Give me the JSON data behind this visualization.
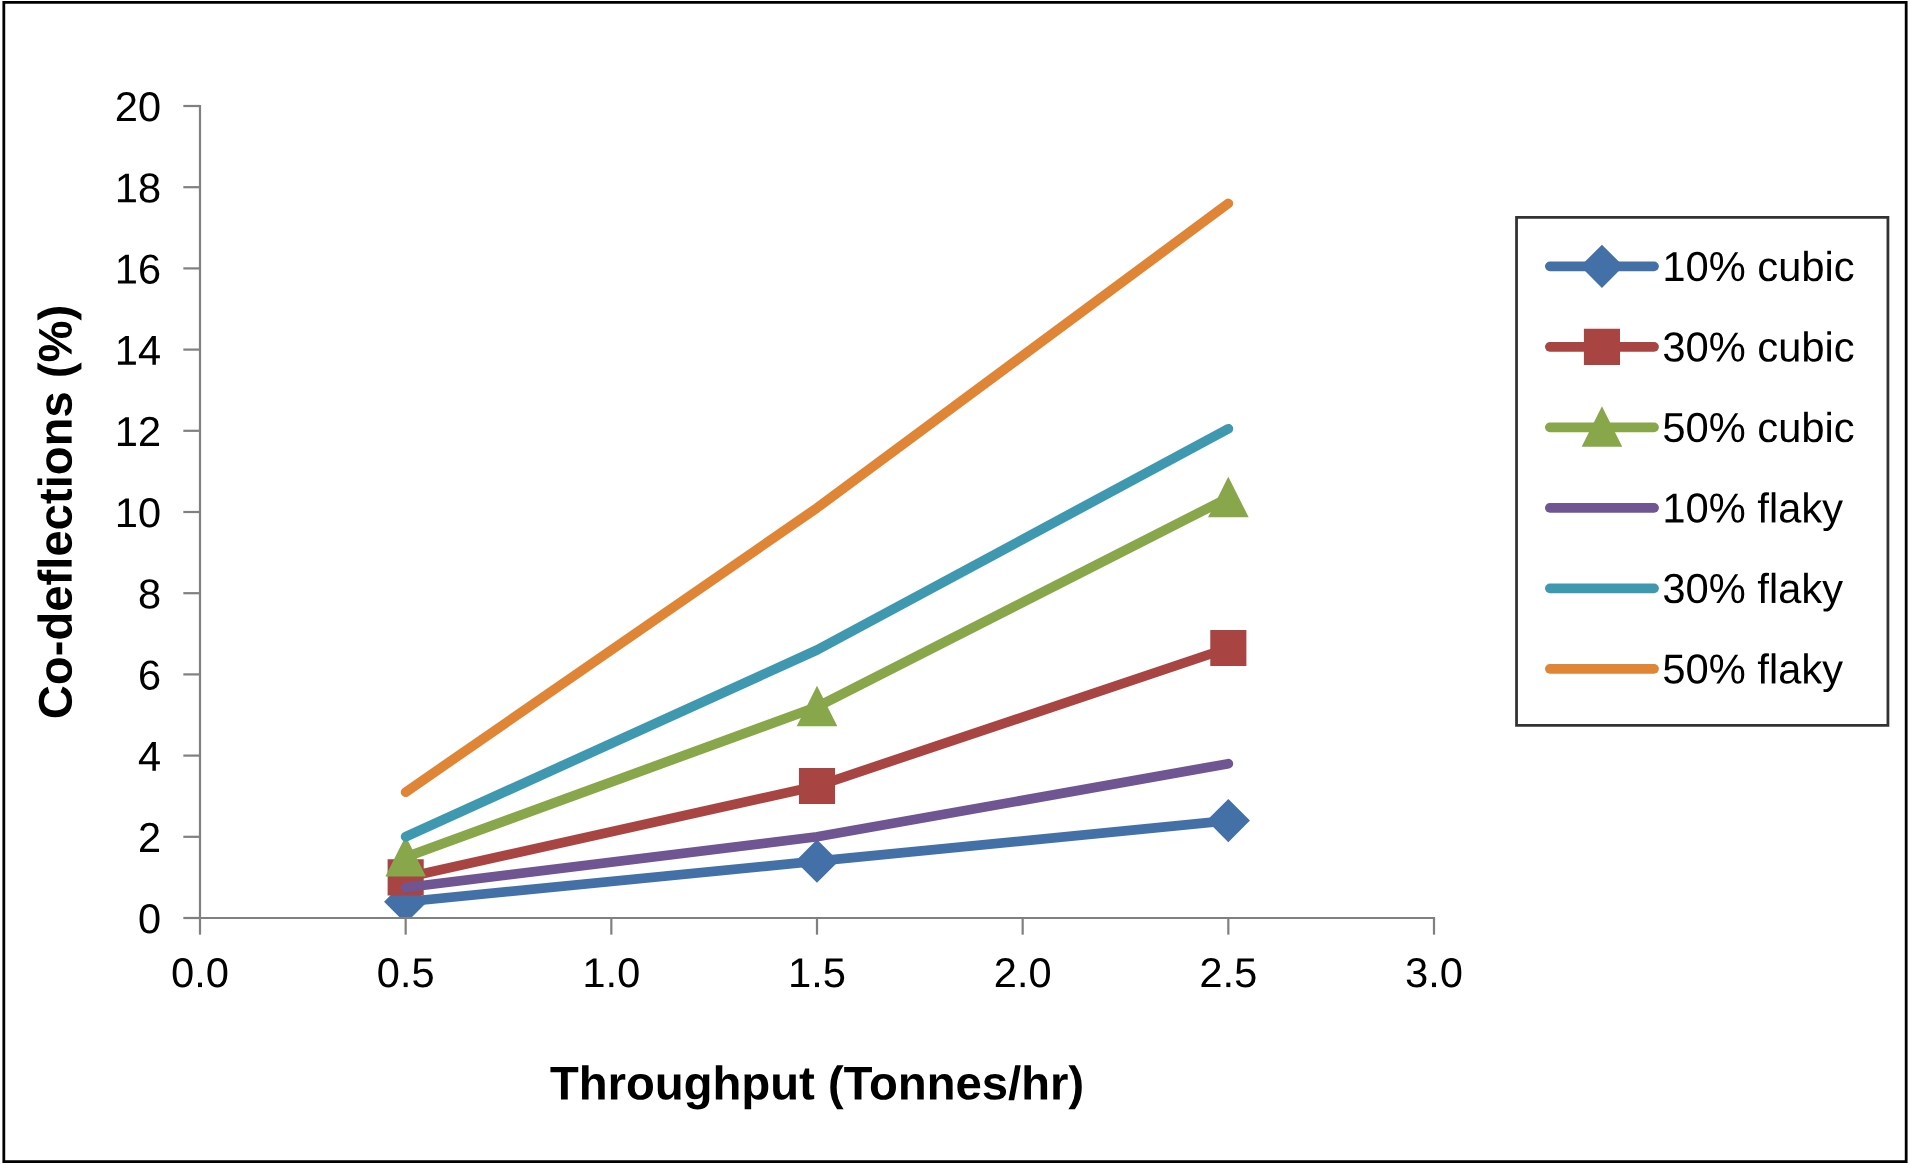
{
  "chart_data": {
    "type": "line",
    "xlabel": "Throughput (Tonnes/hr)",
    "ylabel": "Co-deflections (%)",
    "x": [
      0.5,
      1.5,
      2.5
    ],
    "series": [
      {
        "name": "10% cubic",
        "color": "#4470a8",
        "values": [
          0.4,
          1.4,
          2.4
        ],
        "marker": "diamond"
      },
      {
        "name": "30% cubic",
        "color": "#a84543",
        "values": [
          1.0,
          3.25,
          6.65
        ],
        "marker": "square"
      },
      {
        "name": "50% cubic",
        "color": "#88a64a",
        "values": [
          1.5,
          5.2,
          10.35
        ],
        "marker": "triangle"
      },
      {
        "name": "10% flaky",
        "color": "#6f5592",
        "values": [
          0.75,
          2.0,
          3.8
        ],
        "marker": "none"
      },
      {
        "name": "30% flaky",
        "color": "#3e98b0",
        "values": [
          2.0,
          6.6,
          12.05
        ],
        "marker": "none"
      },
      {
        "name": "50% flaky",
        "color": "#e08535",
        "values": [
          3.1,
          10.1,
          17.6
        ],
        "marker": "none"
      }
    ],
    "xlim": [
      0.0,
      3.0
    ],
    "xticks": [
      {
        "value": 0,
        "label": "0.0"
      },
      {
        "value": 0.5,
        "label": "0.5"
      },
      {
        "value": 1,
        "label": "1.0"
      },
      {
        "value": 1.5,
        "label": "1.5"
      },
      {
        "value": 2,
        "label": "2.0"
      },
      {
        "value": 2.5,
        "label": "2.5"
      },
      {
        "value": 3,
        "label": "3.0"
      }
    ],
    "ylim": [
      0,
      20
    ],
    "yticks": [
      0,
      2,
      4,
      6,
      8,
      10,
      12,
      14,
      16,
      18,
      20
    ],
    "grid": false,
    "legend": "right"
  }
}
